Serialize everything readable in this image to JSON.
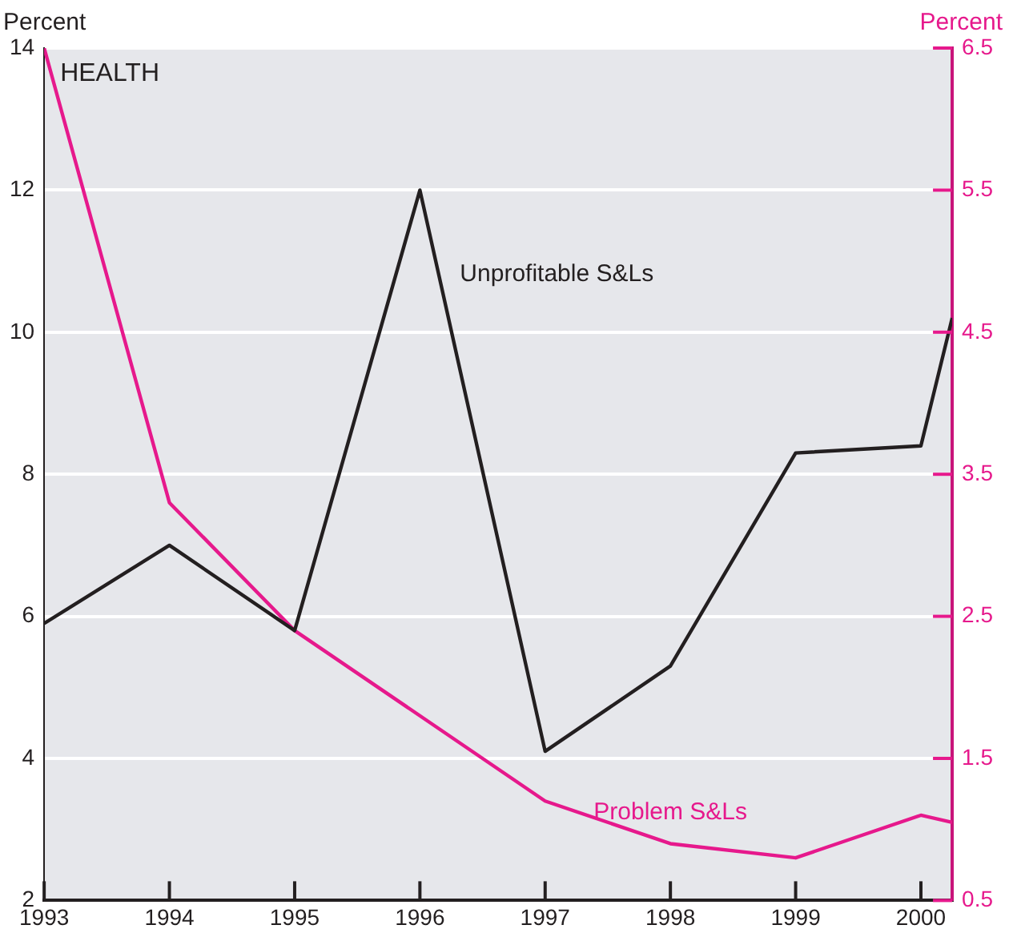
{
  "chart_data": {
    "type": "line",
    "ylabel": "Percent",
    "y2label": "Percent",
    "annotations": [
      "HEALTH"
    ],
    "x": [
      1993,
      1994,
      1995,
      1996,
      1997,
      1998,
      1999,
      2000,
      2000.25
    ],
    "series": [
      {
        "name": "Unprofitable S&Ls",
        "color": "#231f20",
        "values": [
          5.9,
          7.0,
          5.8,
          12.0,
          4.1,
          5.3,
          8.3,
          8.4,
          10.2
        ]
      },
      {
        "name": "Problem S&Ls",
        "color": "#e6198c",
        "axis": "y2",
        "values": [
          6.5,
          3.3,
          2.4,
          1.8,
          1.2,
          0.9,
          0.8,
          1.1,
          1.05
        ]
      }
    ],
    "xlim": [
      1993,
      2000.25
    ],
    "xticks": [
      1993,
      1994,
      1995,
      1996,
      1997,
      1998,
      1999,
      2000
    ],
    "ylim": [
      2,
      14
    ],
    "yticks": [
      2,
      4,
      6,
      8,
      10,
      12,
      14
    ],
    "y2lim": [
      0.5,
      6.5
    ],
    "y2ticks": [
      0.5,
      1.5,
      2.5,
      3.5,
      4.5,
      5.5,
      6.5
    ],
    "grid": "y",
    "legend": false,
    "marker": "none",
    "line_style": "solid"
  }
}
